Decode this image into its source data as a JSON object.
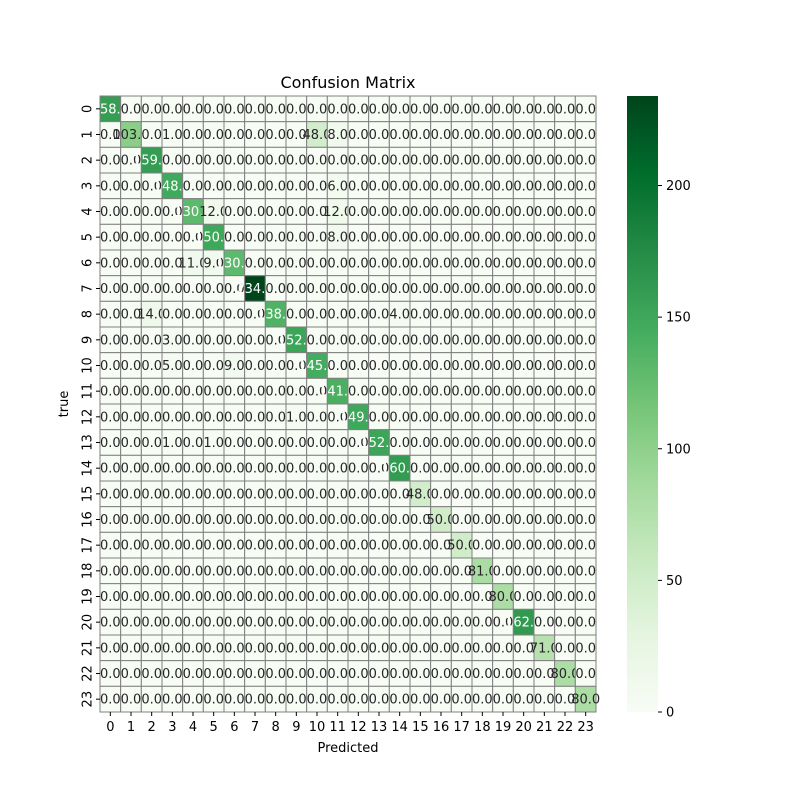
{
  "chart_data": {
    "type": "heatmap",
    "title": "Confusion Matrix",
    "xlabel": "Predicted",
    "ylabel": "true",
    "x_categories": [
      "0",
      "1",
      "2",
      "3",
      "4",
      "5",
      "6",
      "7",
      "8",
      "9",
      "10",
      "11",
      "12",
      "13",
      "14",
      "15",
      "16",
      "17",
      "18",
      "19",
      "20",
      "21",
      "22",
      "23"
    ],
    "y_categories": [
      "0",
      "1",
      "2",
      "3",
      "4",
      "5",
      "6",
      "7",
      "8",
      "9",
      "10",
      "11",
      "12",
      "13",
      "14",
      "15",
      "16",
      "17",
      "18",
      "19",
      "20",
      "21",
      "22",
      "23"
    ],
    "colorscale": {
      "name": "Greens",
      "min": 0,
      "max": 234,
      "low_color": "#f7fcf5",
      "high_color": "#00441b"
    },
    "colorbar_ticks": [
      0,
      50,
      100,
      150,
      200
    ],
    "grid": true,
    "values": [
      [
        158,
        0,
        0,
        0,
        0,
        0,
        0,
        0,
        0,
        0,
        0,
        0,
        0,
        0,
        0,
        0,
        0,
        0,
        0,
        0,
        0,
        0,
        0,
        0
      ],
      [
        0,
        103,
        0,
        1,
        0,
        0,
        0,
        0,
        0,
        0,
        48,
        8,
        0,
        0,
        0,
        0,
        0,
        0,
        0,
        0,
        0,
        0,
        0,
        0
      ],
      [
        0,
        0,
        159,
        0,
        0,
        0,
        0,
        0,
        0,
        0,
        0,
        0,
        0,
        0,
        0,
        0,
        0,
        0,
        0,
        0,
        0,
        0,
        0,
        0
      ],
      [
        0,
        0,
        0,
        148,
        0,
        0,
        0,
        0,
        0,
        0,
        0,
        6,
        0,
        0,
        0,
        0,
        0,
        0,
        0,
        0,
        0,
        0,
        0,
        0
      ],
      [
        0,
        0,
        0,
        0,
        130,
        12,
        0,
        0,
        0,
        0,
        0,
        12,
        0,
        0,
        0,
        0,
        0,
        0,
        0,
        0,
        0,
        0,
        0,
        0
      ],
      [
        0,
        0,
        0,
        0,
        0,
        150,
        0,
        0,
        0,
        0,
        0,
        8,
        0,
        0,
        0,
        0,
        0,
        0,
        0,
        0,
        0,
        0,
        0,
        0
      ],
      [
        0,
        0,
        0,
        0,
        11,
        9,
        130,
        0,
        0,
        0,
        0,
        0,
        0,
        0,
        0,
        0,
        0,
        0,
        0,
        0,
        0,
        0,
        0,
        0
      ],
      [
        0,
        0,
        0,
        0,
        0,
        0,
        0,
        234,
        0,
        0,
        0,
        0,
        0,
        0,
        0,
        0,
        0,
        0,
        0,
        0,
        0,
        0,
        0,
        0
      ],
      [
        0,
        0,
        14,
        0,
        0,
        0,
        0,
        0,
        138,
        0,
        0,
        0,
        0,
        0,
        4,
        0,
        0,
        0,
        0,
        0,
        0,
        0,
        0,
        0
      ],
      [
        0,
        0,
        0,
        3,
        0,
        0,
        0,
        0,
        0,
        152,
        0,
        0,
        0,
        0,
        0,
        0,
        0,
        0,
        0,
        0,
        0,
        0,
        0,
        0
      ],
      [
        0,
        0,
        0,
        5,
        0,
        0,
        9,
        0,
        0,
        0,
        145,
        0,
        0,
        0,
        0,
        0,
        0,
        0,
        0,
        0,
        0,
        0,
        0,
        0
      ],
      [
        0,
        0,
        0,
        0,
        0,
        0,
        0,
        0,
        0,
        0,
        0,
        141,
        0,
        0,
        0,
        0,
        0,
        0,
        0,
        0,
        0,
        0,
        0,
        0
      ],
      [
        0,
        0,
        0,
        0,
        0,
        0,
        0,
        0,
        0,
        1,
        0,
        0,
        149,
        0,
        0,
        0,
        0,
        0,
        0,
        0,
        0,
        0,
        0,
        0
      ],
      [
        0,
        0,
        0,
        1,
        0,
        1,
        0,
        0,
        0,
        0,
        0,
        0,
        0,
        152,
        0,
        0,
        0,
        0,
        0,
        0,
        0,
        0,
        0,
        0
      ],
      [
        0,
        0,
        0,
        0,
        0,
        0,
        0,
        0,
        0,
        0,
        0,
        0,
        0,
        0,
        160,
        0,
        0,
        0,
        0,
        0,
        0,
        0,
        0,
        0
      ],
      [
        0,
        0,
        0,
        0,
        0,
        0,
        0,
        0,
        0,
        0,
        0,
        0,
        0,
        0,
        0,
        48,
        0,
        0,
        0,
        0,
        0,
        0,
        0,
        0
      ],
      [
        0,
        0,
        0,
        0,
        0,
        0,
        0,
        0,
        0,
        0,
        0,
        0,
        0,
        0,
        0,
        0,
        50,
        0,
        0,
        0,
        0,
        0,
        0,
        0
      ],
      [
        0,
        0,
        0,
        0,
        0,
        0,
        0,
        0,
        0,
        0,
        0,
        0,
        0,
        0,
        0,
        0,
        0,
        50,
        0,
        0,
        0,
        0,
        0,
        0
      ],
      [
        0,
        0,
        0,
        0,
        0,
        0,
        0,
        0,
        0,
        0,
        0,
        0,
        0,
        0,
        0,
        0,
        0,
        0,
        81,
        0,
        0,
        0,
        0,
        0
      ],
      [
        0,
        0,
        0,
        0,
        0,
        0,
        0,
        0,
        0,
        0,
        0,
        0,
        0,
        0,
        0,
        0,
        0,
        0,
        0,
        80,
        0,
        0,
        0,
        0
      ],
      [
        0,
        0,
        0,
        0,
        0,
        0,
        0,
        0,
        0,
        0,
        0,
        0,
        0,
        0,
        0,
        0,
        0,
        0,
        0,
        0,
        162,
        0,
        0,
        0
      ],
      [
        0,
        0,
        0,
        0,
        0,
        0,
        0,
        0,
        0,
        0,
        0,
        0,
        0,
        0,
        0,
        0,
        0,
        0,
        0,
        0,
        0,
        71,
        0,
        0
      ],
      [
        0,
        0,
        0,
        0,
        0,
        0,
        0,
        0,
        0,
        0,
        0,
        0,
        0,
        0,
        0,
        0,
        0,
        0,
        0,
        0,
        0,
        0,
        80,
        0
      ],
      [
        0,
        0,
        0,
        0,
        0,
        0,
        0,
        0,
        0,
        0,
        0,
        0,
        0,
        0,
        0,
        0,
        0,
        0,
        0,
        0,
        0,
        0,
        0,
        80
      ]
    ]
  }
}
